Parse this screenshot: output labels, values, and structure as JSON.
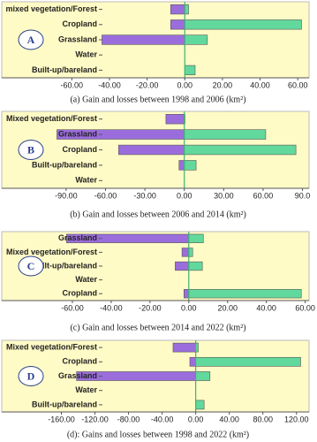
{
  "chart_data": [
    {
      "type": "bar",
      "panel_label": "A",
      "caption": "(a) Gain and losses between 1998 and 2006 (km²)",
      "categories": [
        "mixed vegetation/Forest",
        "Cropland",
        "Grassland",
        "Water",
        "Built-up/bareland"
      ],
      "series": [
        {
          "color": "#9b6ddc",
          "values": [
            -7.5,
            -7.5,
            -44,
            0,
            0
          ]
        },
        {
          "color": "#62d99c",
          "values": [
            2,
            62,
            12,
            0,
            5.5
          ]
        }
      ],
      "xlim": [
        -70,
        66
      ],
      "xticks": [
        {
          "value": -60,
          "label": "-60.00"
        },
        {
          "value": -40,
          "label": "-40.00"
        },
        {
          "value": -20,
          "label": "-20.00"
        },
        {
          "value": 0,
          "label": "0.00"
        },
        {
          "value": 20,
          "label": "20.00"
        },
        {
          "value": 40,
          "label": "40.00"
        },
        {
          "value": 60,
          "label": "60.00"
        }
      ]
    },
    {
      "type": "bar",
      "panel_label": "B",
      "caption": "(b) Gain and losses between 2006 and 2014 (km²)",
      "categories": [
        "Mixed vegetation/Forest",
        "Grassland",
        "Cropland",
        "Built-up/bareland",
        "Water"
      ],
      "series": [
        {
          "color": "#9b6ddc",
          "values": [
            -14,
            -97,
            -50,
            -4,
            0
          ]
        },
        {
          "color": "#62d99c",
          "values": [
            0.5,
            62,
            85,
            9,
            0
          ]
        }
      ],
      "xlim": [
        -100,
        95
      ],
      "xticks": [
        {
          "value": -90,
          "label": "-90.00"
        },
        {
          "value": -60,
          "label": "-60.00"
        },
        {
          "value": -30,
          "label": "-30.00"
        },
        {
          "value": 0,
          "label": "0.00"
        },
        {
          "value": 30,
          "label": "30.00"
        },
        {
          "value": 60,
          "label": "60.00"
        },
        {
          "value": 90,
          "label": "90.0"
        }
      ]
    },
    {
      "type": "bar",
      "panel_label": "C",
      "caption": "(c) Gain and losses between 2014 and 2022 (km²)",
      "categories": [
        "Grassland",
        "Mixed vegetation/Forest",
        "Built-up/bareland",
        "Water",
        "Cropland"
      ],
      "series": [
        {
          "color": "#9b6ddc",
          "values": [
            -63,
            -3.5,
            -7,
            0,
            -2.5
          ]
        },
        {
          "color": "#62d99c",
          "values": [
            7.5,
            2,
            7,
            0,
            58
          ]
        }
      ],
      "xlim": [
        -70,
        62
      ],
      "xticks": [
        {
          "value": -60,
          "label": "-60.00"
        },
        {
          "value": -40,
          "label": "-40.00"
        },
        {
          "value": -20,
          "label": "-20.00"
        },
        {
          "value": 0,
          "label": "0.00"
        },
        {
          "value": 20,
          "label": "20.00"
        },
        {
          "value": 40,
          "label": "40.00"
        },
        {
          "value": 60,
          "label": "60.00"
        }
      ]
    },
    {
      "type": "bar",
      "panel_label": "D",
      "caption": "(d): Gains and losses between 1998 and 2022 (km²)",
      "categories": [
        "Mixed vegetation/Forest",
        "Cropland",
        "Grassland",
        "Water",
        "Built-up/bareland"
      ],
      "series": [
        {
          "color": "#9b6ddc",
          "values": [
            -27,
            -7,
            -142,
            0,
            0
          ]
        },
        {
          "color": "#62d99c",
          "values": [
            3,
            125,
            17,
            0,
            10
          ]
        }
      ],
      "xlim": [
        -170,
        135
      ],
      "xticks": [
        {
          "value": -160,
          "label": "-160.00"
        },
        {
          "value": -120,
          "label": "-120.00"
        },
        {
          "value": -80,
          "label": "-80.00"
        },
        {
          "value": -40,
          "label": "-40.00"
        },
        {
          "value": 0,
          "label": "0.00"
        },
        {
          "value": 40,
          "label": "40.00"
        },
        {
          "value": 80,
          "label": "80.00"
        },
        {
          "value": 120,
          "label": "120.00"
        }
      ]
    }
  ]
}
